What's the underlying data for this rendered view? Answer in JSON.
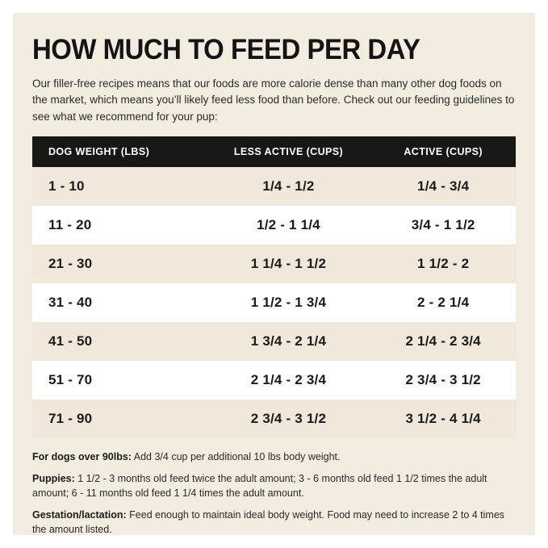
{
  "colors": {
    "page_bg": "#ffffff",
    "panel_bg": "#f2ece1",
    "table_header_bg": "#171715",
    "table_header_fg": "#ffffff",
    "row_alt_bg": "#efe8db",
    "row_bg": "#ffffff",
    "text": "#1d1d1b"
  },
  "title": "HOW MUCH TO FEED PER DAY",
  "intro": "Our filler-free recipes means that our foods are more calorie dense than many other dog foods on the market, which means you’ll likely feed less food than before. Check out our feeding guidelines to see what we recommend for your pup:",
  "table": {
    "headers": [
      "DOG WEIGHT (LBS)",
      "LESS ACTIVE (CUPS)",
      "ACTIVE (CUPS)"
    ],
    "rows": [
      [
        "1 - 10",
        "1/4 - 1/2",
        "1/4 - 3/4"
      ],
      [
        "11 - 20",
        "1/2 - 1 1/4",
        "3/4 - 1 1/2"
      ],
      [
        "21 - 30",
        "1 1/4 - 1 1/2",
        "1 1/2 - 2"
      ],
      [
        "31 - 40",
        "1 1/2 - 1 3/4",
        "2 - 2 1/4"
      ],
      [
        "41 - 50",
        "1 3/4 - 2 1/4",
        "2 1/4 - 2 3/4"
      ],
      [
        "51 - 70",
        "2 1/4 - 2 3/4",
        "2 3/4 - 3 1/2"
      ],
      [
        "71 - 90",
        "2 3/4 - 3 1/2",
        "3 1/2 - 4 1/4"
      ]
    ]
  },
  "notes": [
    {
      "lead": "For dogs over 90lbs:",
      "text": "Add 3/4 cup per additional 10 lbs body weight."
    },
    {
      "lead": "Puppies:",
      "text": "1 1/2 - 3 months old feed twice the adult amount; 3 - 6 months old feed 1 1/2 times the adult amount; 6 - 11 months old feed 1 1/4 times the adult amount."
    },
    {
      "lead": "Gestation/lactation:",
      "text": "Feed enough to maintain ideal body weight. Food may need to increase 2 to 4 times the amount listed."
    }
  ]
}
